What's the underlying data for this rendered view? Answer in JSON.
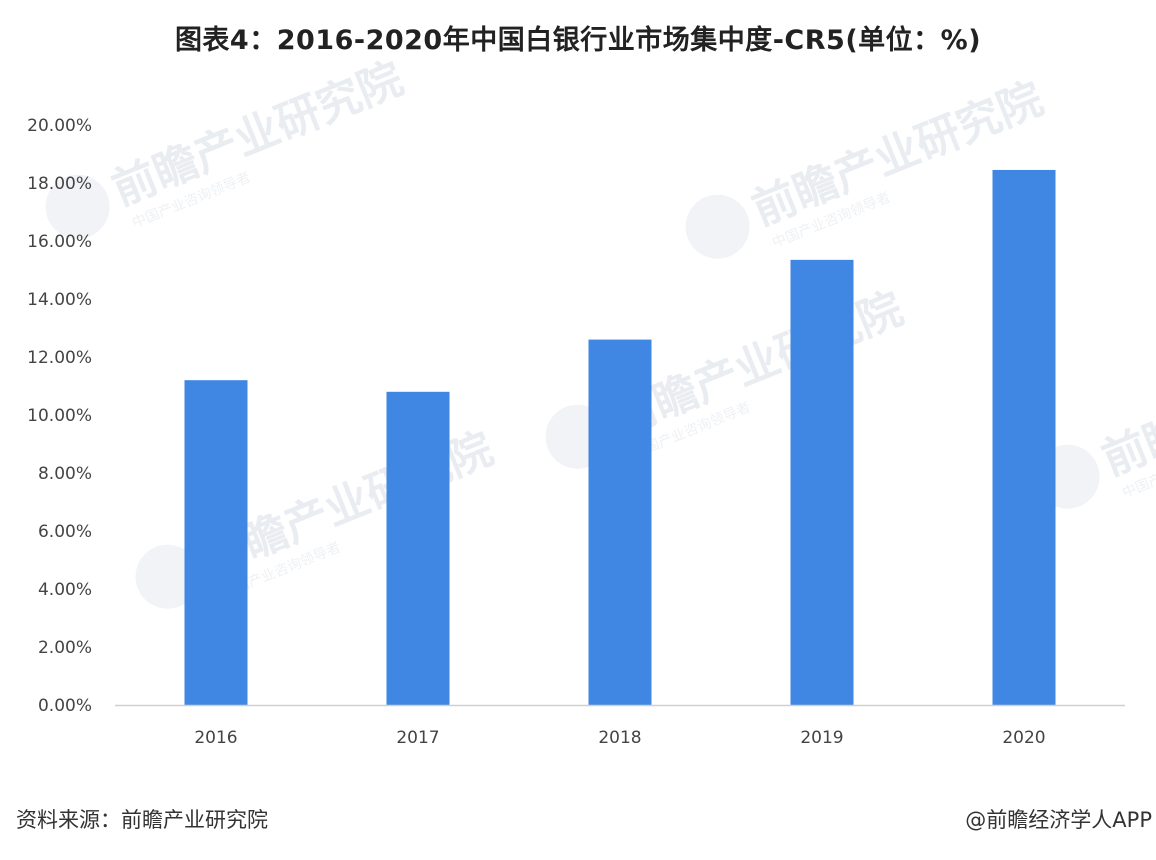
{
  "title": "图表4：2016-2020年中国白银行业市场集中度-CR5(单位：%)",
  "source": "资料来源：前瞻产业研究院",
  "credit": "@前瞻经济学人APP",
  "watermark": {
    "brand": "前瞻产业研究院",
    "sub": "中国产业咨询领导者"
  },
  "colors": {
    "bar": "#3f87e3",
    "axis": "#d0d0d0",
    "text": "#444444"
  },
  "chart_data": {
    "type": "bar",
    "categories": [
      "2016",
      "2017",
      "2018",
      "2019",
      "2020"
    ],
    "values": [
      11.2,
      10.8,
      12.6,
      15.35,
      18.45
    ],
    "ylim": [
      0,
      20
    ],
    "yticks": [
      "0.00%",
      "2.00%",
      "4.00%",
      "6.00%",
      "8.00%",
      "10.00%",
      "12.00%",
      "14.00%",
      "16.00%",
      "18.00%",
      "20.00%"
    ],
    "grid": false,
    "legend": "none"
  }
}
